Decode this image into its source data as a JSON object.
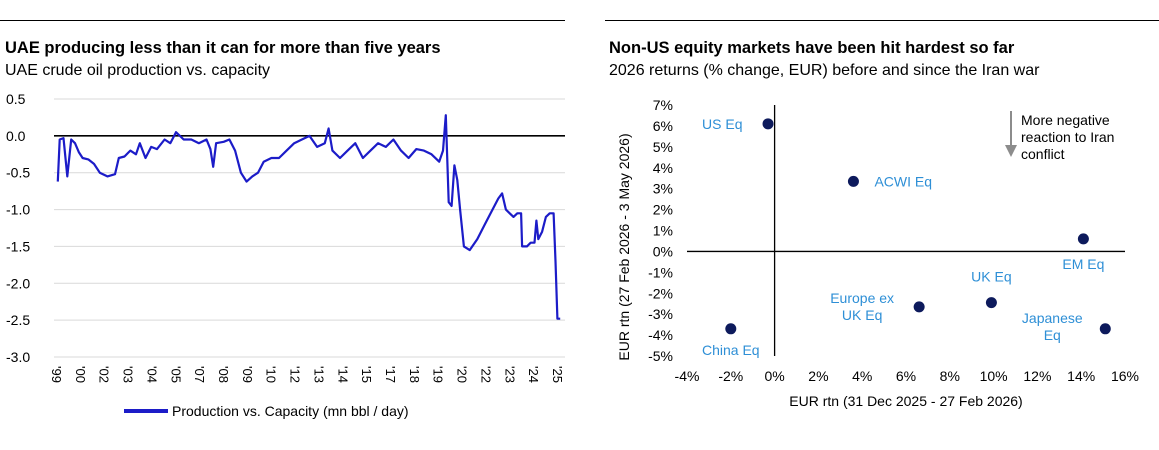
{
  "chart_data": [
    {
      "type": "line",
      "title": "UAE producing less than it can for more than five years",
      "subtitle": "UAE crude oil production vs. capacity",
      "ylim": [
        -3.0,
        0.5
      ],
      "yticks": [
        "0.5",
        "0.0",
        "-0.5",
        "-1.0",
        "-1.5",
        "-2.0",
        "-2.5",
        "-3.0"
      ],
      "xticks": [
        "'99",
        "'00",
        "'02",
        "'03",
        "'04",
        "'05",
        "'07",
        "'08",
        "'09",
        "'10",
        "'12",
        "'13",
        "'14",
        "'15",
        "'17",
        "'18",
        "'19",
        "'20",
        "'22",
        "'23",
        "'24",
        "'25"
      ],
      "grid": true,
      "legend_position": "bottom",
      "series_color": "#1c1cc8",
      "series": [
        {
          "name": "Production vs. Capacity (mn bbl / day)",
          "points": [
            [
              1999.0,
              -0.62
            ],
            [
              1999.1,
              -0.05
            ],
            [
              1999.3,
              -0.03
            ],
            [
              1999.5,
              -0.55
            ],
            [
              1999.7,
              -0.05
            ],
            [
              1999.9,
              -0.1
            ],
            [
              2000.1,
              -0.22
            ],
            [
              2000.3,
              -0.3
            ],
            [
              2000.6,
              -0.32
            ],
            [
              2000.9,
              -0.38
            ],
            [
              2001.2,
              -0.5
            ],
            [
              2001.6,
              -0.55
            ],
            [
              2002.0,
              -0.52
            ],
            [
              2002.2,
              -0.3
            ],
            [
              2002.5,
              -0.28
            ],
            [
              2002.8,
              -0.2
            ],
            [
              2003.1,
              -0.25
            ],
            [
              2003.3,
              -0.1
            ],
            [
              2003.6,
              -0.3
            ],
            [
              2003.9,
              -0.15
            ],
            [
              2004.2,
              -0.18
            ],
            [
              2004.6,
              -0.05
            ],
            [
              2004.9,
              -0.1
            ],
            [
              2005.2,
              0.05
            ],
            [
              2005.6,
              -0.05
            ],
            [
              2006.0,
              -0.05
            ],
            [
              2006.4,
              -0.1
            ],
            [
              2006.8,
              -0.05
            ],
            [
              2007.0,
              -0.18
            ],
            [
              2007.15,
              -0.42
            ],
            [
              2007.3,
              -0.1
            ],
            [
              2007.7,
              -0.08
            ],
            [
              2008.0,
              -0.05
            ],
            [
              2008.3,
              -0.2
            ],
            [
              2008.6,
              -0.5
            ],
            [
              2008.9,
              -0.62
            ],
            [
              2009.2,
              -0.55
            ],
            [
              2009.5,
              -0.5
            ],
            [
              2009.8,
              -0.35
            ],
            [
              2010.2,
              -0.3
            ],
            [
              2010.6,
              -0.3
            ],
            [
              2011.0,
              -0.2
            ],
            [
              2011.4,
              -0.1
            ],
            [
              2011.8,
              -0.05
            ],
            [
              2012.2,
              0.0
            ],
            [
              2012.6,
              -0.15
            ],
            [
              2013.0,
              -0.1
            ],
            [
              2013.2,
              0.1
            ],
            [
              2013.4,
              -0.2
            ],
            [
              2013.8,
              -0.3
            ],
            [
              2014.2,
              -0.2
            ],
            [
              2014.6,
              -0.1
            ],
            [
              2015.0,
              -0.3
            ],
            [
              2015.4,
              -0.2
            ],
            [
              2015.8,
              -0.1
            ],
            [
              2016.2,
              -0.15
            ],
            [
              2016.6,
              -0.05
            ],
            [
              2017.0,
              -0.2
            ],
            [
              2017.4,
              -0.3
            ],
            [
              2017.8,
              -0.18
            ],
            [
              2018.2,
              -0.2
            ],
            [
              2018.6,
              -0.25
            ],
            [
              2019.0,
              -0.35
            ],
            [
              2019.2,
              -0.2
            ],
            [
              2019.35,
              0.28
            ],
            [
              2019.5,
              -0.9
            ],
            [
              2019.65,
              -0.95
            ],
            [
              2019.8,
              -0.4
            ],
            [
              2019.95,
              -0.6
            ],
            [
              2020.1,
              -1.0
            ],
            [
              2020.3,
              -1.5
            ],
            [
              2020.6,
              -1.55
            ],
            [
              2021.0,
              -1.4
            ],
            [
              2021.4,
              -1.2
            ],
            [
              2021.8,
              -1.0
            ],
            [
              2022.1,
              -0.85
            ],
            [
              2022.3,
              -0.78
            ],
            [
              2022.5,
              -1.0
            ],
            [
              2022.7,
              -1.05
            ],
            [
              2022.9,
              -1.1
            ],
            [
              2023.1,
              -1.05
            ],
            [
              2023.3,
              -1.05
            ],
            [
              2023.35,
              -1.5
            ],
            [
              2023.6,
              -1.5
            ],
            [
              2023.8,
              -1.45
            ],
            [
              2024.0,
              -1.45
            ],
            [
              2024.1,
              -1.15
            ],
            [
              2024.2,
              -1.4
            ],
            [
              2024.4,
              -1.3
            ],
            [
              2024.6,
              -1.1
            ],
            [
              2024.8,
              -1.05
            ],
            [
              2025.0,
              -1.05
            ],
            [
              2025.1,
              -1.7
            ],
            [
              2025.2,
              -2.48
            ],
            [
              2025.35,
              -2.48
            ]
          ]
        }
      ]
    },
    {
      "type": "scatter",
      "title": "Non-US equity markets have been hit hardest so far",
      "subtitle": "2026 returns (% change, EUR) before and since the Iran war",
      "xlabel": "EUR rtn (31 Dec 2025 - 27 Feb 2026)",
      "ylabel": "EUR rtn (27 Feb 2026 - 3 May 2026)",
      "xlim": [
        -4,
        16
      ],
      "ylim": [
        -5,
        7
      ],
      "xticks": [
        "-4%",
        "-2%",
        "0%",
        "2%",
        "4%",
        "6%",
        "8%",
        "10%",
        "12%",
        "14%",
        "16%"
      ],
      "yticks": [
        "7%",
        "6%",
        "5%",
        "4%",
        "3%",
        "2%",
        "1%",
        "0%",
        "-1%",
        "-2%",
        "-3%",
        "-4%",
        "-5%"
      ],
      "point_color": "#0d1a5c",
      "label_color": "#2e8fd6",
      "points": [
        {
          "label": "US Eq",
          "x": -0.3,
          "y": 6.1
        },
        {
          "label": "ACWI Eq",
          "x": 3.6,
          "y": 3.35
        },
        {
          "label": "EM Eq",
          "x": 14.1,
          "y": 0.6
        },
        {
          "label": "UK Eq",
          "x": 9.9,
          "y": -2.45
        },
        {
          "label": "Europe ex UK Eq",
          "x": 6.6,
          "y": -2.65
        },
        {
          "label": "Japanese Eq",
          "x": 15.1,
          "y": -3.7
        },
        {
          "label": "China Eq",
          "x": -2.0,
          "y": -3.7
        }
      ],
      "annotation": "More negative reaction to Iran conflict"
    }
  ]
}
